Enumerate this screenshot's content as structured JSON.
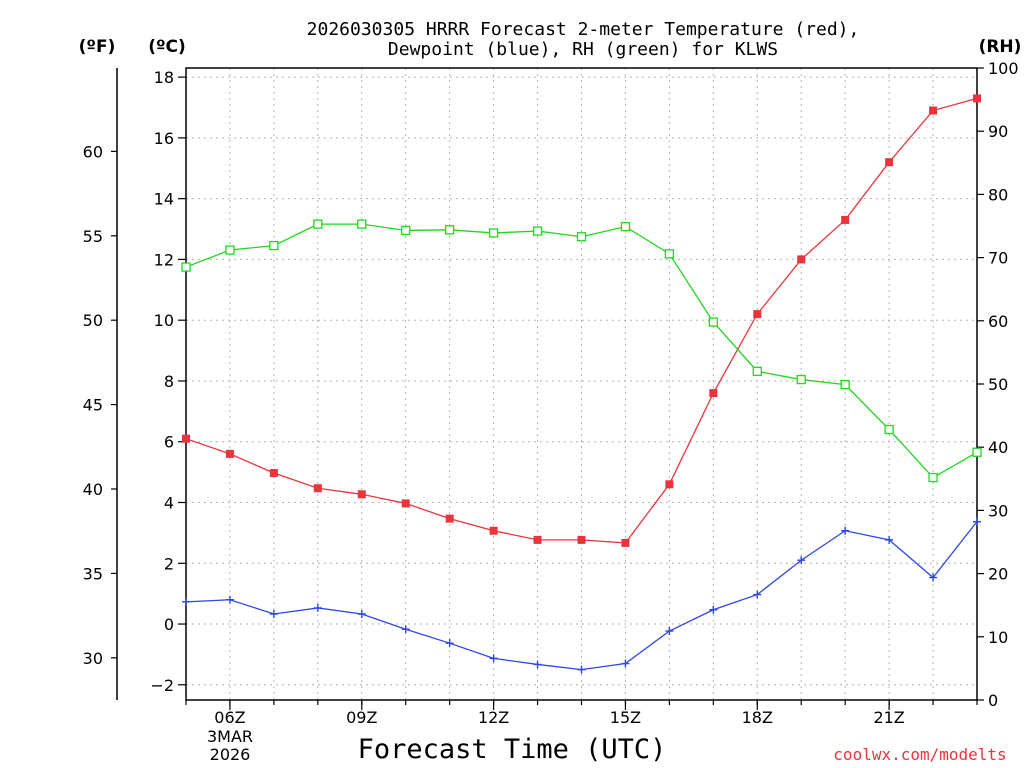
{
  "chart_data": {
    "type": "line",
    "title_line1": "2026030305 HRRR Forecast 2-meter Temperature (red),",
    "title_line2": "Dewpoint (blue), RH (green) for KLWS",
    "xlabel": "Forecast Time (UTC)",
    "credit": "coolwx.com/modelts",
    "units": {
      "fahrenheit": "(ºF)",
      "celsius": "(ºC)",
      "rh": "(RH)"
    },
    "x_hours": [
      5,
      6,
      7,
      8,
      9,
      10,
      11,
      12,
      13,
      14,
      15,
      16,
      17,
      18,
      19,
      20,
      21,
      22,
      23
    ],
    "xlim": [
      5,
      23
    ],
    "x_ticks": [
      {
        "hour": 6,
        "label": "06Z"
      },
      {
        "hour": 9,
        "label": "09Z"
      },
      {
        "hour": 12,
        "label": "12Z"
      },
      {
        "hour": 15,
        "label": "15Z"
      },
      {
        "hour": 18,
        "label": "18Z"
      },
      {
        "hour": 21,
        "label": "21Z"
      }
    ],
    "date_label_line1": "3MAR",
    "date_label_line2": "2026",
    "celsius_axis": {
      "ylim": [
        -2.5,
        18.3
      ],
      "ticks": [
        18,
        16,
        14,
        12,
        10,
        8,
        6,
        4,
        2,
        0,
        -2
      ]
    },
    "fahrenheit_axis": {
      "ticks": [
        60,
        55,
        50,
        45,
        40,
        35,
        30
      ]
    },
    "rh_axis": {
      "ylim": [
        0,
        100
      ],
      "ticks": [
        100,
        90,
        80,
        70,
        60,
        50,
        40,
        30,
        20,
        10,
        0
      ]
    },
    "series": [
      {
        "name": "Temperature",
        "axis": "celsius",
        "color": "#e8343c",
        "marker": "filled-square",
        "values": [
          6.1,
          5.6,
          4.97,
          4.47,
          4.27,
          3.97,
          3.47,
          3.07,
          2.77,
          2.77,
          2.67,
          4.6,
          7.6,
          10.2,
          12.0,
          13.3,
          15.2,
          16.9,
          17.3
        ]
      },
      {
        "name": "Dewpoint",
        "axis": "celsius",
        "color": "#2e46e6",
        "marker": "plus",
        "values": [
          0.73,
          0.8,
          0.33,
          0.53,
          0.33,
          -0.17,
          -0.63,
          -1.13,
          -1.33,
          -1.5,
          -1.3,
          -0.23,
          0.47,
          0.97,
          2.1,
          3.07,
          2.77,
          1.53,
          3.37
        ]
      },
      {
        "name": "RH",
        "axis": "rh",
        "color": "#22d622",
        "marker": "open-square",
        "values": [
          68.5,
          71.2,
          71.9,
          75.3,
          75.3,
          74.3,
          74.4,
          73.9,
          74.2,
          73.3,
          74.9,
          70.6,
          59.8,
          52.0,
          50.7,
          49.9,
          42.8,
          35.2,
          39.2
        ]
      }
    ]
  }
}
